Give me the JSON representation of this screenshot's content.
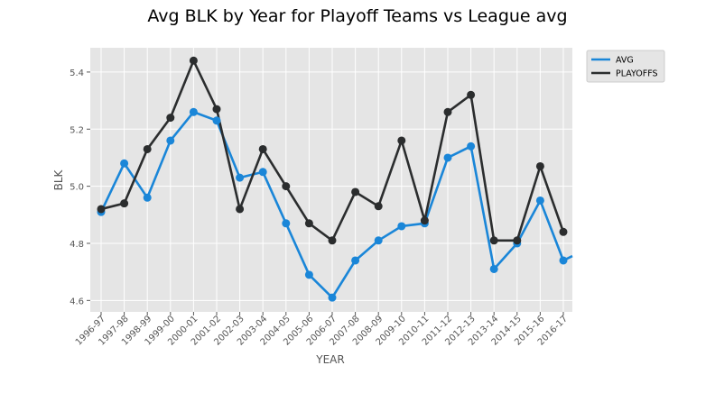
{
  "chart_data": {
    "type": "line",
    "title": "Avg BLK by Year for Playoff Teams vs League avg",
    "xlabel": "YEAR",
    "ylabel": "BLK",
    "categories": [
      "1996-97",
      "1997-98",
      "1998-99",
      "1999-00",
      "2000-01",
      "2001-02",
      "2002-03",
      "2003-04",
      "2004-05",
      "2005-06",
      "2006-07",
      "2007-08",
      "2008-09",
      "2009-10",
      "2010-11",
      "2011-12",
      "2012-13",
      "2013-14",
      "2014-15",
      "2015-16",
      "2016-17"
    ],
    "ylim": [
      4.56,
      5.485
    ],
    "yticks": [
      4.6,
      4.8,
      5.0,
      5.2,
      5.4
    ],
    "ytick_labels": [
      "4.6",
      "4.8",
      "5.0",
      "5.2",
      "5.4"
    ],
    "grid": true,
    "legend_position": "outside-top-right",
    "series": [
      {
        "name": "AVG",
        "color": "#1a86d8",
        "values": [
          4.91,
          5.08,
          4.96,
          5.16,
          5.26,
          5.23,
          5.03,
          5.05,
          4.87,
          4.69,
          4.61,
          4.74,
          4.81,
          4.86,
          4.87,
          5.1,
          5.14,
          4.71,
          4.8,
          4.95,
          4.74
        ],
        "extends_past_last": 4.78
      },
      {
        "name": "PLAYOFFS",
        "color": "#2b2d2e",
        "values": [
          4.92,
          4.94,
          5.13,
          5.24,
          5.44,
          5.27,
          4.92,
          5.13,
          5.0,
          4.87,
          4.81,
          4.98,
          4.93,
          5.16,
          4.88,
          5.26,
          5.32,
          4.81,
          4.81,
          5.07,
          4.84
        ]
      }
    ]
  },
  "colors": {
    "plot_background": "#e5e5e5",
    "grid": "#ffffff",
    "tick_text": "#555555"
  }
}
